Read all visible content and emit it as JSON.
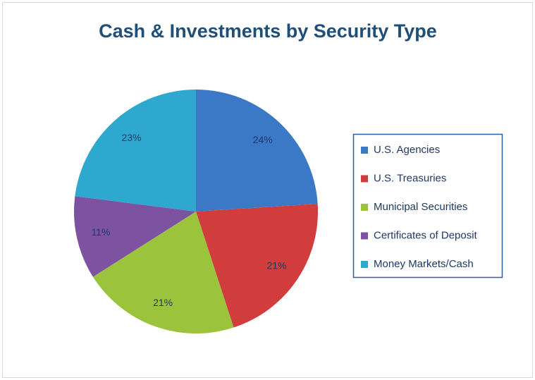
{
  "chart_data": {
    "type": "pie",
    "title": "Cash & Investments by Security Type",
    "categories": [
      "U.S. Agencies",
      "U.S. Treasuries",
      "Municipal Securities",
      "Certificates of Deposit",
      "Money Markets/Cash"
    ],
    "values": [
      24,
      21,
      21,
      11,
      23
    ],
    "value_labels": [
      "24%",
      "21%",
      "21%",
      "11%",
      "23%"
    ],
    "colors": [
      "#3b78c6",
      "#d13c3c",
      "#9cc33c",
      "#7d52a0",
      "#2fa8d0"
    ],
    "legend": "right"
  }
}
